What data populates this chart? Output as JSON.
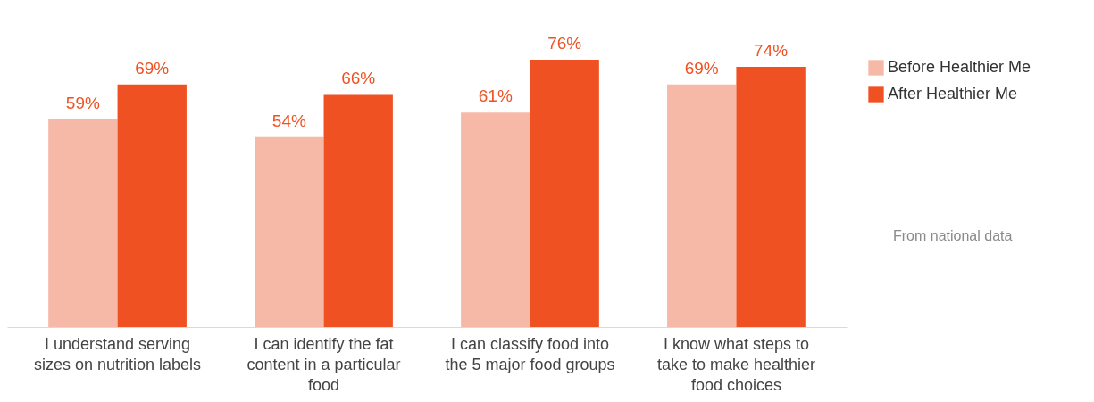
{
  "chart_data": {
    "type": "bar",
    "categories": [
      "I understand serving sizes on nutrition labels",
      "I can identify the fat content in a particular food",
      "I can classify food into the 5 major food groups",
      "I know what steps to take to make healthier food choices"
    ],
    "series": [
      {
        "name": "Before Healthier Me",
        "color": "#f7b9a7",
        "values": [
          59,
          54,
          61,
          69
        ],
        "value_labels": [
          "59%",
          "54%",
          "61%",
          "69%"
        ]
      },
      {
        "name": "After Healthier Me",
        "color": "#f05123",
        "values": [
          69,
          66,
          76,
          74
        ],
        "value_labels": [
          "69%",
          "66%",
          "76%",
          "74%"
        ]
      }
    ],
    "legend": "right",
    "grid": false,
    "annotations": [
      "From national data"
    ]
  }
}
